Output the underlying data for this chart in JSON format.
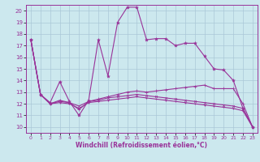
{
  "xlabel": "Windchill (Refroidissement éolien,°C)",
  "bg_color": "#cce8ee",
  "grid_color": "#aac8d8",
  "line_color": "#993399",
  "xlim": [
    -0.5,
    23.5
  ],
  "ylim": [
    9.5,
    20.5
  ],
  "yticks": [
    10,
    11,
    12,
    13,
    14,
    15,
    16,
    17,
    18,
    19,
    20
  ],
  "xticks": [
    0,
    1,
    2,
    3,
    4,
    5,
    6,
    7,
    8,
    9,
    10,
    11,
    12,
    13,
    14,
    15,
    16,
    17,
    18,
    19,
    20,
    21,
    22,
    23
  ],
  "line1_x": [
    0,
    1,
    2,
    3,
    4,
    5,
    6,
    7,
    8,
    9,
    10,
    11,
    12,
    13,
    14,
    15,
    16,
    17,
    18,
    19,
    20,
    21,
    22,
    23
  ],
  "line1_y": [
    17.5,
    12.8,
    12.1,
    13.9,
    12.2,
    11.0,
    12.3,
    17.5,
    14.4,
    19.0,
    20.3,
    20.3,
    17.5,
    17.6,
    17.6,
    17.0,
    17.2,
    17.2,
    16.1,
    15.0,
    14.9,
    14.0,
    11.6,
    10.0
  ],
  "line2_x": [
    0,
    1,
    2,
    3,
    4,
    5,
    6,
    7,
    8,
    9,
    10,
    11,
    12,
    13,
    14,
    15,
    16,
    17,
    18,
    19,
    20,
    21,
    22,
    23
  ],
  "line2_y": [
    17.5,
    12.8,
    12.0,
    12.3,
    12.1,
    11.5,
    12.2,
    12.4,
    12.6,
    12.8,
    13.0,
    13.1,
    13.0,
    13.1,
    13.2,
    13.3,
    13.4,
    13.5,
    13.6,
    13.3,
    13.3,
    13.3,
    12.0,
    10.0
  ],
  "line3_x": [
    0,
    1,
    2,
    3,
    4,
    5,
    6,
    7,
    8,
    9,
    10,
    11,
    12,
    13,
    14,
    15,
    16,
    17,
    18,
    19,
    20,
    21,
    22,
    23
  ],
  "line3_y": [
    17.5,
    12.8,
    12.0,
    12.2,
    12.1,
    11.8,
    12.2,
    12.3,
    12.5,
    12.6,
    12.7,
    12.8,
    12.7,
    12.6,
    12.5,
    12.4,
    12.3,
    12.2,
    12.1,
    12.0,
    11.9,
    11.8,
    11.6,
    10.0
  ],
  "line4_x": [
    0,
    1,
    2,
    3,
    4,
    5,
    6,
    7,
    8,
    9,
    10,
    11,
    12,
    13,
    14,
    15,
    16,
    17,
    18,
    19,
    20,
    21,
    22,
    23
  ],
  "line4_y": [
    17.5,
    12.8,
    12.0,
    12.1,
    12.0,
    11.6,
    12.1,
    12.2,
    12.3,
    12.4,
    12.5,
    12.6,
    12.5,
    12.4,
    12.3,
    12.2,
    12.1,
    12.0,
    11.9,
    11.8,
    11.7,
    11.6,
    11.4,
    10.0
  ]
}
